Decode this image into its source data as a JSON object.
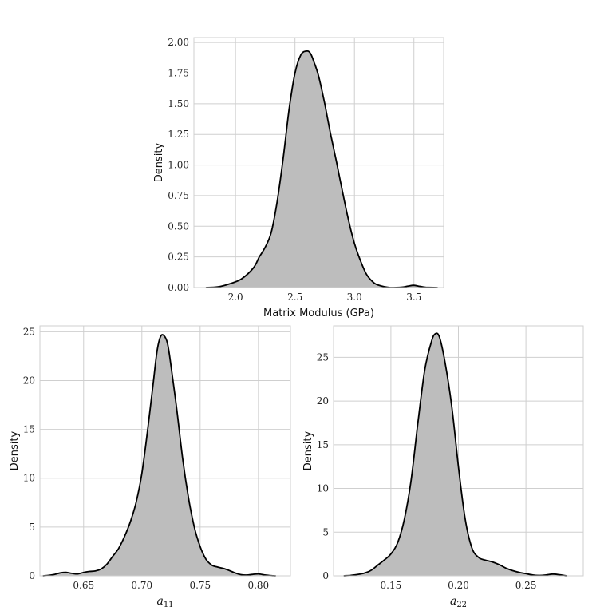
{
  "colors": {
    "fill": "#bdbdbd",
    "line": "#000000",
    "grid": "#cfcfcf"
  },
  "chart_data": [
    {
      "type": "area",
      "xlabel": "Matrix Modulus (GPa)",
      "ylabel": "Density",
      "xlim": [
        1.65,
        3.75
      ],
      "ylim": [
        0,
        2.04
      ],
      "xticks": [
        "2.0",
        "2.5",
        "3.0",
        "3.5"
      ],
      "yticks": [
        "0.00",
        "0.25",
        "0.50",
        "0.75",
        "1.00",
        "1.25",
        "1.50",
        "1.75",
        "2.00"
      ],
      "grid": true,
      "x": [
        1.75,
        1.85,
        1.95,
        2.05,
        2.15,
        2.2,
        2.25,
        2.3,
        2.35,
        2.4,
        2.45,
        2.5,
        2.55,
        2.6,
        2.63,
        2.66,
        2.7,
        2.75,
        2.8,
        2.85,
        2.9,
        2.95,
        3.0,
        3.05,
        3.1,
        3.15,
        3.2,
        3.3,
        3.4,
        3.45,
        3.5,
        3.55,
        3.6,
        3.7
      ],
      "y": [
        0.0,
        0.005,
        0.03,
        0.07,
        0.16,
        0.25,
        0.33,
        0.45,
        0.7,
        1.05,
        1.45,
        1.75,
        1.9,
        1.93,
        1.91,
        1.84,
        1.72,
        1.5,
        1.25,
        1.02,
        0.78,
        0.55,
        0.36,
        0.22,
        0.11,
        0.05,
        0.02,
        0.0,
        0.003,
        0.012,
        0.018,
        0.01,
        0.002,
        0.0
      ]
    },
    {
      "type": "area",
      "xlabel": "a",
      "xlabel_sub": "11",
      "ylabel": "Density",
      "xlim": [
        0.6125,
        0.8275
      ],
      "ylim": [
        0,
        25.6
      ],
      "xticks": [
        "0.65",
        "0.70",
        "0.75",
        "0.80"
      ],
      "yticks": [
        "0",
        "5",
        "10",
        "15",
        "20",
        "25"
      ],
      "grid": true,
      "x": [
        0.615,
        0.62,
        0.625,
        0.63,
        0.635,
        0.64,
        0.645,
        0.65,
        0.655,
        0.66,
        0.665,
        0.67,
        0.675,
        0.68,
        0.685,
        0.69,
        0.695,
        0.7,
        0.705,
        0.71,
        0.713,
        0.716,
        0.719,
        0.722,
        0.725,
        0.73,
        0.735,
        0.74,
        0.745,
        0.75,
        0.755,
        0.76,
        0.765,
        0.77,
        0.775,
        0.78,
        0.785,
        0.79,
        0.795,
        0.8,
        0.805,
        0.81,
        0.815
      ],
      "y": [
        0.0,
        0.05,
        0.15,
        0.3,
        0.35,
        0.25,
        0.2,
        0.35,
        0.45,
        0.5,
        0.7,
        1.2,
        2.0,
        2.8,
        4.0,
        5.5,
        7.5,
        10.5,
        15.0,
        20.0,
        23.0,
        24.5,
        24.6,
        23.8,
        21.5,
        17.0,
        12.0,
        8.0,
        5.0,
        3.0,
        1.7,
        1.1,
        0.9,
        0.75,
        0.55,
        0.3,
        0.12,
        0.08,
        0.15,
        0.2,
        0.1,
        0.03,
        0.0
      ]
    },
    {
      "type": "area",
      "xlabel": "a",
      "xlabel_sub": "22",
      "ylabel": "Density",
      "xlim": [
        0.1075,
        0.2925
      ],
      "ylim": [
        0,
        28.6
      ],
      "xticks": [
        "0.15",
        "0.20",
        "0.25"
      ],
      "yticks": [
        "0",
        "5",
        "10",
        "15",
        "20",
        "25"
      ],
      "grid": true,
      "x": [
        0.115,
        0.12,
        0.125,
        0.13,
        0.135,
        0.14,
        0.145,
        0.15,
        0.155,
        0.16,
        0.165,
        0.17,
        0.175,
        0.18,
        0.183,
        0.186,
        0.19,
        0.195,
        0.2,
        0.205,
        0.21,
        0.215,
        0.22,
        0.225,
        0.23,
        0.235,
        0.24,
        0.245,
        0.25,
        0.255,
        0.26,
        0.265,
        0.27,
        0.275,
        0.28
      ],
      "y": [
        0.0,
        0.05,
        0.15,
        0.3,
        0.6,
        1.2,
        1.8,
        2.5,
        3.8,
        6.5,
        11.0,
        17.5,
        23.5,
        26.8,
        27.7,
        27.3,
        24.5,
        19.5,
        12.5,
        6.5,
        3.2,
        2.1,
        1.8,
        1.6,
        1.3,
        0.9,
        0.6,
        0.4,
        0.25,
        0.1,
        0.05,
        0.1,
        0.2,
        0.12,
        0.0
      ]
    }
  ]
}
